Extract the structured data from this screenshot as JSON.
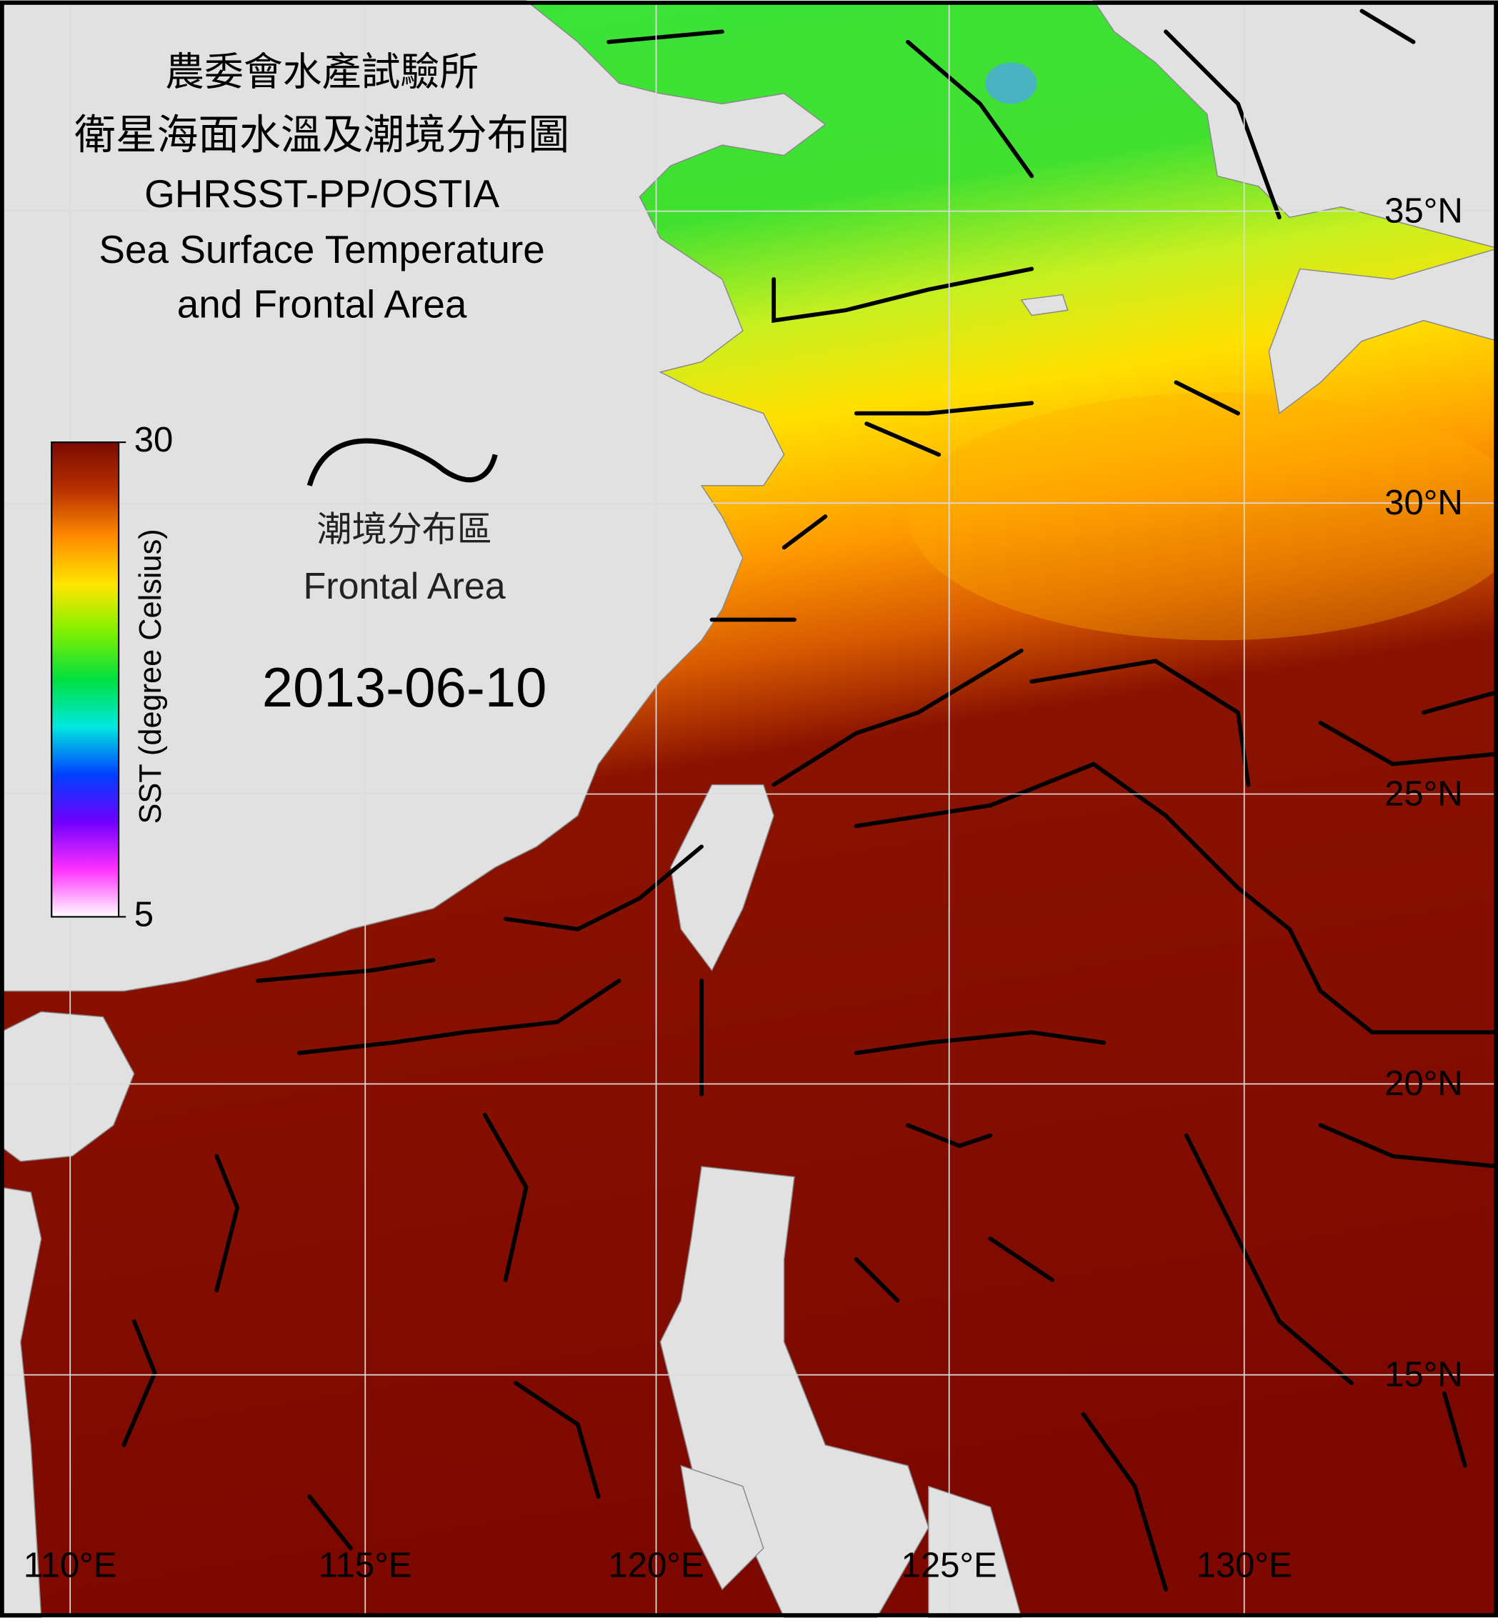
{
  "title": {
    "lines": [
      "農委會水產試驗所",
      "衛星海面水溫及潮境分布圖",
      "GHRSST-PP/OSTIA",
      "Sea Surface Temperature",
      "and Frontal Area"
    ]
  },
  "colorbar": {
    "label": "SST (degree Celsius)",
    "max": 30,
    "min": 5
  },
  "legend": {
    "label_zh": "潮境分布區",
    "label_en": "Frontal Area"
  },
  "date": "2013-06-10",
  "grid": {
    "latitudes": [
      "35°N",
      "30°N",
      "25°N",
      "20°N",
      "15°N"
    ],
    "longitudes": [
      "110°E",
      "115°E",
      "120°E",
      "125°E",
      "130°E"
    ]
  }
}
